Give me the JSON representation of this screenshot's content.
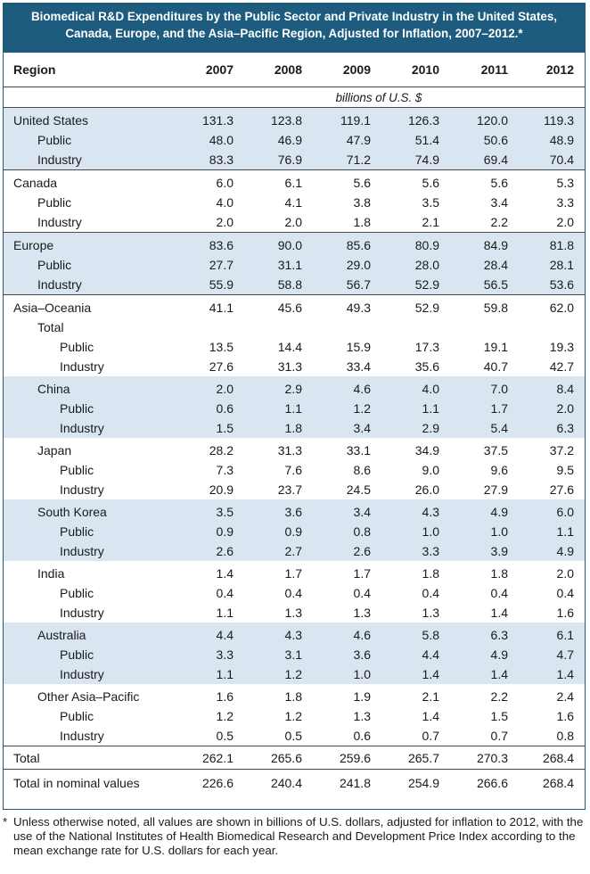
{
  "title_line1": "Biomedical R&D Expenditures by the Public Sector and Private Industry in the United States,",
  "title_line2": "Canada, Europe, and the Asia–Pacific Region, Adjusted for Inflation, 2007–2012.*",
  "header": {
    "region": "Region",
    "years": [
      "2007",
      "2008",
      "2009",
      "2010",
      "2011",
      "2012"
    ]
  },
  "units": "billions of U.S. $",
  "groups": [
    {
      "shade": true,
      "rows": [
        {
          "label": "United States",
          "indent": 0,
          "values": [
            "131.3",
            "123.8",
            "119.1",
            "126.3",
            "120.0",
            "119.3"
          ]
        },
        {
          "label": "Public",
          "indent": 1,
          "values": [
            "48.0",
            "46.9",
            "47.9",
            "51.4",
            "50.6",
            "48.9"
          ]
        },
        {
          "label": "Industry",
          "indent": 1,
          "values": [
            "83.3",
            "76.9",
            "71.2",
            "74.9",
            "69.4",
            "70.4"
          ]
        }
      ]
    },
    {
      "shade": false,
      "rows": [
        {
          "label": "Canada",
          "indent": 0,
          "values": [
            "6.0",
            "6.1",
            "5.6",
            "5.6",
            "5.6",
            "5.3"
          ]
        },
        {
          "label": "Public",
          "indent": 1,
          "values": [
            "4.0",
            "4.1",
            "3.8",
            "3.5",
            "3.4",
            "3.3"
          ]
        },
        {
          "label": "Industry",
          "indent": 1,
          "values": [
            "2.0",
            "2.0",
            "1.8",
            "2.1",
            "2.2",
            "2.0"
          ]
        }
      ]
    },
    {
      "shade": true,
      "rows": [
        {
          "label": "Europe",
          "indent": 0,
          "values": [
            "83.6",
            "90.0",
            "85.6",
            "80.9",
            "84.9",
            "81.8"
          ]
        },
        {
          "label": "Public",
          "indent": 1,
          "values": [
            "27.7",
            "31.1",
            "29.0",
            "28.0",
            "28.4",
            "28.1"
          ]
        },
        {
          "label": "Industry",
          "indent": 1,
          "values": [
            "55.9",
            "58.8",
            "56.7",
            "52.9",
            "56.5",
            "53.6"
          ]
        }
      ]
    },
    {
      "shade": false,
      "rows": [
        {
          "label": "Asia–Oceania",
          "indent": 0,
          "values": [
            "41.1",
            "45.6",
            "49.3",
            "52.9",
            "59.8",
            "62.0"
          ]
        },
        {
          "label": "Total",
          "indent": 1,
          "values": [
            "",
            "",
            "",
            "",
            "",
            ""
          ]
        },
        {
          "label": "Public",
          "indent": 2,
          "values": [
            "13.5",
            "14.4",
            "15.9",
            "17.3",
            "19.1",
            "19.3"
          ]
        },
        {
          "label": "Industry",
          "indent": 2,
          "values": [
            "27.6",
            "31.3",
            "33.4",
            "35.6",
            "40.7",
            "42.7"
          ]
        }
      ]
    },
    {
      "shade": true,
      "rows": [
        {
          "label": "China",
          "indent": 1,
          "values": [
            "2.0",
            "2.9",
            "4.6",
            "4.0",
            "7.0",
            "8.4"
          ]
        },
        {
          "label": "Public",
          "indent": 2,
          "values": [
            "0.6",
            "1.1",
            "1.2",
            "1.1",
            "1.7",
            "2.0"
          ]
        },
        {
          "label": "Industry",
          "indent": 2,
          "values": [
            "1.5",
            "1.8",
            "3.4",
            "2.9",
            "5.4",
            "6.3"
          ]
        }
      ]
    },
    {
      "shade": false,
      "rows": [
        {
          "label": "Japan",
          "indent": 1,
          "values": [
            "28.2",
            "31.3",
            "33.1",
            "34.9",
            "37.5",
            "37.2"
          ]
        },
        {
          "label": "Public",
          "indent": 2,
          "values": [
            "7.3",
            "7.6",
            "8.6",
            "9.0",
            "9.6",
            "9.5"
          ]
        },
        {
          "label": "Industry",
          "indent": 2,
          "values": [
            "20.9",
            "23.7",
            "24.5",
            "26.0",
            "27.9",
            "27.6"
          ]
        }
      ]
    },
    {
      "shade": true,
      "rows": [
        {
          "label": "South Korea",
          "indent": 1,
          "values": [
            "3.5",
            "3.6",
            "3.4",
            "4.3",
            "4.9",
            "6.0"
          ]
        },
        {
          "label": "Public",
          "indent": 2,
          "values": [
            "0.9",
            "0.9",
            "0.8",
            "1.0",
            "1.0",
            "1.1"
          ]
        },
        {
          "label": "Industry",
          "indent": 2,
          "values": [
            "2.6",
            "2.7",
            "2.6",
            "3.3",
            "3.9",
            "4.9"
          ]
        }
      ]
    },
    {
      "shade": false,
      "rows": [
        {
          "label": "India",
          "indent": 1,
          "values": [
            "1.4",
            "1.7",
            "1.7",
            "1.8",
            "1.8",
            "2.0"
          ]
        },
        {
          "label": "Public",
          "indent": 2,
          "values": [
            "0.4",
            "0.4",
            "0.4",
            "0.4",
            "0.4",
            "0.4"
          ]
        },
        {
          "label": "Industry",
          "indent": 2,
          "values": [
            "1.1",
            "1.3",
            "1.3",
            "1.3",
            "1.4",
            "1.6"
          ]
        }
      ]
    },
    {
      "shade": true,
      "rows": [
        {
          "label": "Australia",
          "indent": 1,
          "values": [
            "4.4",
            "4.3",
            "4.6",
            "5.8",
            "6.3",
            "6.1"
          ]
        },
        {
          "label": "Public",
          "indent": 2,
          "values": [
            "3.3",
            "3.1",
            "3.6",
            "4.4",
            "4.9",
            "4.7"
          ]
        },
        {
          "label": "Industry",
          "indent": 2,
          "values": [
            "1.1",
            "1.2",
            "1.0",
            "1.4",
            "1.4",
            "1.4"
          ]
        }
      ]
    },
    {
      "shade": false,
      "rows": [
        {
          "label": "Other Asia–Pacific",
          "indent": 1,
          "values": [
            "1.6",
            "1.8",
            "1.9",
            "2.1",
            "2.2",
            "2.4"
          ]
        },
        {
          "label": "Public",
          "indent": 2,
          "values": [
            "1.2",
            "1.2",
            "1.3",
            "1.4",
            "1.5",
            "1.6"
          ]
        },
        {
          "label": "Industry",
          "indent": 2,
          "values": [
            "0.5",
            "0.5",
            "0.6",
            "0.7",
            "0.7",
            "0.8"
          ]
        }
      ]
    }
  ],
  "total": {
    "label": "Total",
    "values": [
      "262.1",
      "265.6",
      "259.6",
      "265.7",
      "270.3",
      "268.4"
    ]
  },
  "nominal": {
    "label": "Total in nominal values",
    "values": [
      "226.6",
      "240.4",
      "241.8",
      "254.9",
      "266.6",
      "268.4"
    ]
  },
  "colors": {
    "title_bg": "#1d5c7f",
    "shade": "#d9e6f1",
    "title_text": "#ffffff"
  },
  "footnote": {
    "star": "*",
    "text": "Unless otherwise noted, all values are shown in billions of U.S. dollars, adjusted for inflation to 2012, with the use of the National Institutes of Health Biomedical Research and Development Price Index according to the mean exchange rate for U.S. dollars for each year."
  }
}
